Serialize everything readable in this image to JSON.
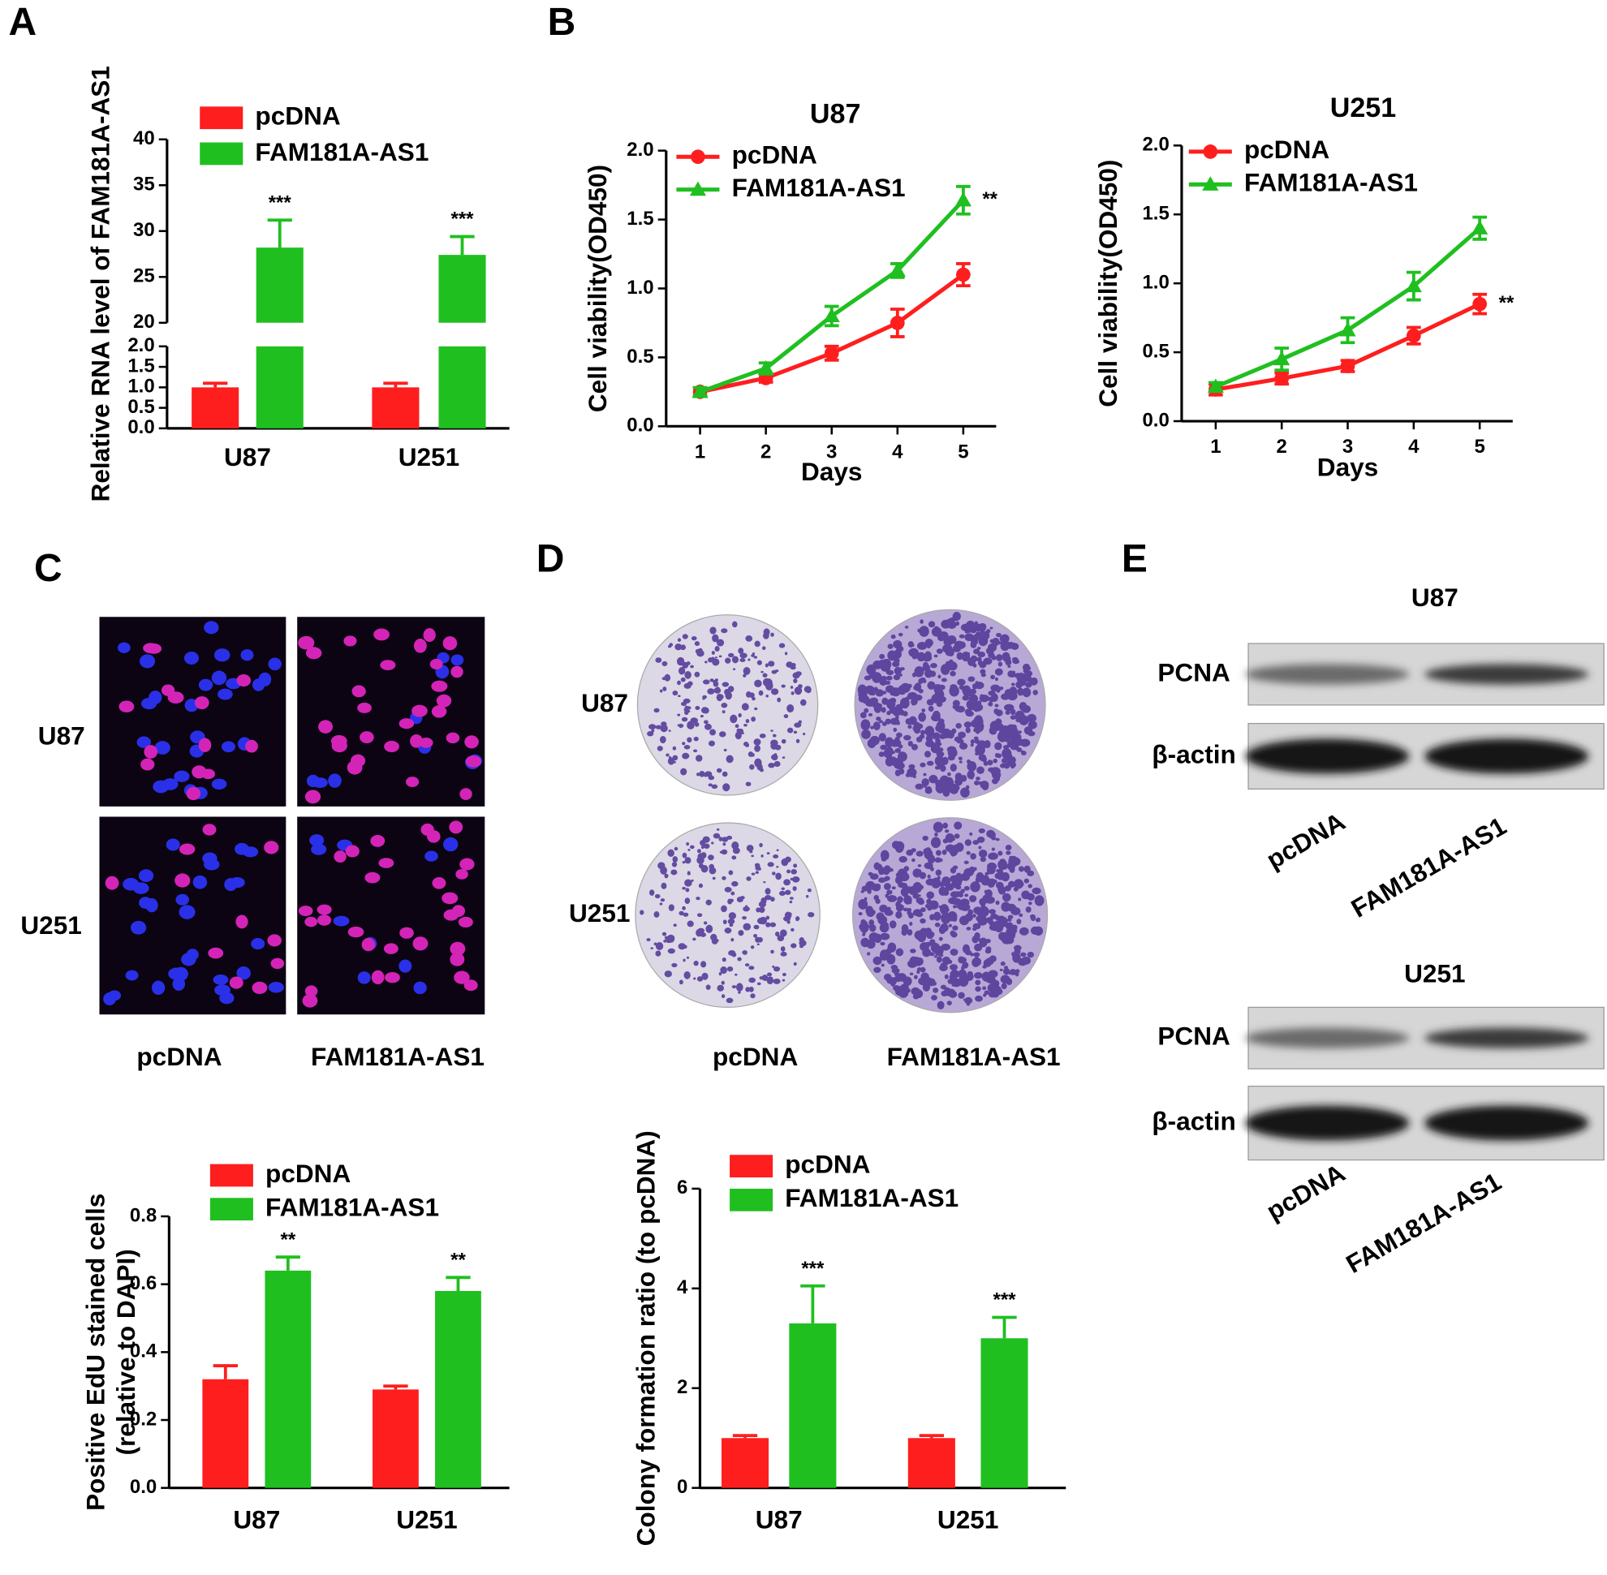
{
  "panel_labels": [
    "A",
    "B",
    "C",
    "D",
    "E"
  ],
  "images": {
    "edu": {
      "rows": [
        "U87",
        "U251"
      ],
      "columns": [
        "pcDNA",
        "FAM181A-AS1"
      ]
    },
    "colony": {
      "rows": [
        "U87",
        "U251"
      ],
      "columns": [
        "pcDNA",
        "FAM181A-AS1"
      ]
    },
    "western": [
      {
        "title": "U87",
        "rows": [
          "PCNA",
          "β-actin"
        ],
        "columns": [
          "pcDNA",
          "FAM181A-AS1"
        ]
      },
      {
        "title": "U251",
        "rows": [
          "PCNA",
          "β-actin"
        ],
        "columns": [
          "pcDNA",
          "FAM181A-AS1"
        ]
      }
    ]
  },
  "chart_data": [
    {
      "type": "bar",
      "ylabel": "Relative RNA level of FAM181A-AS1",
      "categories": [
        "U87",
        "U251"
      ],
      "series": [
        {
          "name": "pcDNA",
          "color": "#fe1e1e",
          "values": [
            1.0,
            1.0
          ],
          "errors": [
            0.1,
            0.1
          ]
        },
        {
          "name": "FAM181A-AS1",
          "color": "#20bf20",
          "values": [
            28.2,
            27.4
          ],
          "errors": [
            3.0,
            2.0
          ]
        }
      ],
      "ylim": [
        0,
        40
      ],
      "ybreak": [
        2,
        20
      ],
      "yticks": [
        {
          "value": 0,
          "label": "0.0"
        },
        0.5,
        {
          "value": 1,
          "label": "1.0"
        },
        1.5,
        {
          "value": 2,
          "label": "2.0"
        },
        20,
        25,
        30,
        35,
        40
      ],
      "annotations": [
        "***",
        "***"
      ]
    },
    {
      "type": "line",
      "title": "U87",
      "xlabel": "Days",
      "ylabel": "Cell viability(OD450)",
      "x": [
        1,
        2,
        3,
        4,
        5
      ],
      "xlim": [
        0.5,
        5.5
      ],
      "xticks": [
        1,
        2,
        3,
        4,
        5
      ],
      "series": [
        {
          "name": "pcDNA",
          "color": "#fe1e1e",
          "marker": "circle",
          "values": [
            0.25,
            0.35,
            0.53,
            0.75,
            1.1
          ],
          "errors": [
            0.03,
            0.03,
            0.05,
            0.1,
            0.08
          ]
        },
        {
          "name": "FAM181A-AS1",
          "color": "#20bf20",
          "marker": "triangle",
          "values": [
            0.25,
            0.42,
            0.8,
            1.13,
            1.64
          ],
          "errors": [
            0.03,
            0.04,
            0.07,
            0.05,
            0.1
          ]
        }
      ],
      "ylim": [
        0,
        2
      ],
      "yticks": [
        {
          "value": 0,
          "label": "0.0"
        },
        0.5,
        {
          "value": 1,
          "label": "1.0"
        },
        1.5,
        {
          "value": 2,
          "label": "2.0"
        }
      ],
      "annotations": [
        "**"
      ]
    },
    {
      "type": "line",
      "title": "U251",
      "xlabel": "Days",
      "ylabel": "Cell viability(OD450)",
      "x": [
        1,
        2,
        3,
        4,
        5
      ],
      "xlim": [
        0.5,
        5.5
      ],
      "xticks": [
        1,
        2,
        3,
        4,
        5
      ],
      "series": [
        {
          "name": "pcDNA",
          "color": "#fe1e1e",
          "marker": "circle",
          "values": [
            0.23,
            0.31,
            0.4,
            0.62,
            0.85
          ],
          "errors": [
            0.04,
            0.04,
            0.04,
            0.06,
            0.07
          ]
        },
        {
          "name": "FAM181A-AS1",
          "color": "#20bf20",
          "marker": "triangle",
          "values": [
            0.25,
            0.45,
            0.66,
            0.98,
            1.4
          ],
          "errors": [
            0.03,
            0.08,
            0.09,
            0.1,
            0.08
          ]
        }
      ],
      "ylim": [
        0,
        2
      ],
      "yticks": [
        {
          "value": 0,
          "label": "0.0"
        },
        0.5,
        {
          "value": 1,
          "label": "1.0"
        },
        1.5,
        {
          "value": 2,
          "label": "2.0"
        }
      ],
      "annotations": [
        "**"
      ]
    },
    {
      "type": "bar",
      "ylabel": [
        "Positive EdU stained cells",
        "(relative to DAPI)"
      ],
      "categories": [
        "U87",
        "U251"
      ],
      "series": [
        {
          "name": "pcDNA",
          "color": "#fe1e1e",
          "values": [
            0.32,
            0.29
          ],
          "errors": [
            0.04,
            0.01
          ]
        },
        {
          "name": "FAM181A-AS1",
          "color": "#20bf20",
          "values": [
            0.64,
            0.58
          ],
          "errors": [
            0.04,
            0.04
          ]
        }
      ],
      "ylim": [
        0,
        0.8
      ],
      "yticks": [
        {
          "value": 0,
          "label": "0.0"
        },
        0.2,
        0.4,
        0.6,
        0.8
      ],
      "annotations": [
        "**",
        "**"
      ]
    },
    {
      "type": "bar",
      "ylabel": "Colony formation ratio (to pcDNA)",
      "categories": [
        "U87",
        "U251"
      ],
      "series": [
        {
          "name": "pcDNA",
          "color": "#fe1e1e",
          "values": [
            1.0,
            1.0
          ],
          "errors": [
            0.05,
            0.05
          ]
        },
        {
          "name": "FAM181A-AS1",
          "color": "#20bf20",
          "values": [
            3.3,
            3.0
          ],
          "errors": [
            0.75,
            0.42
          ]
        }
      ],
      "ylim": [
        0,
        6
      ],
      "yticks": [
        0,
        2,
        4,
        6
      ],
      "annotations": [
        "***",
        "***"
      ]
    }
  ]
}
